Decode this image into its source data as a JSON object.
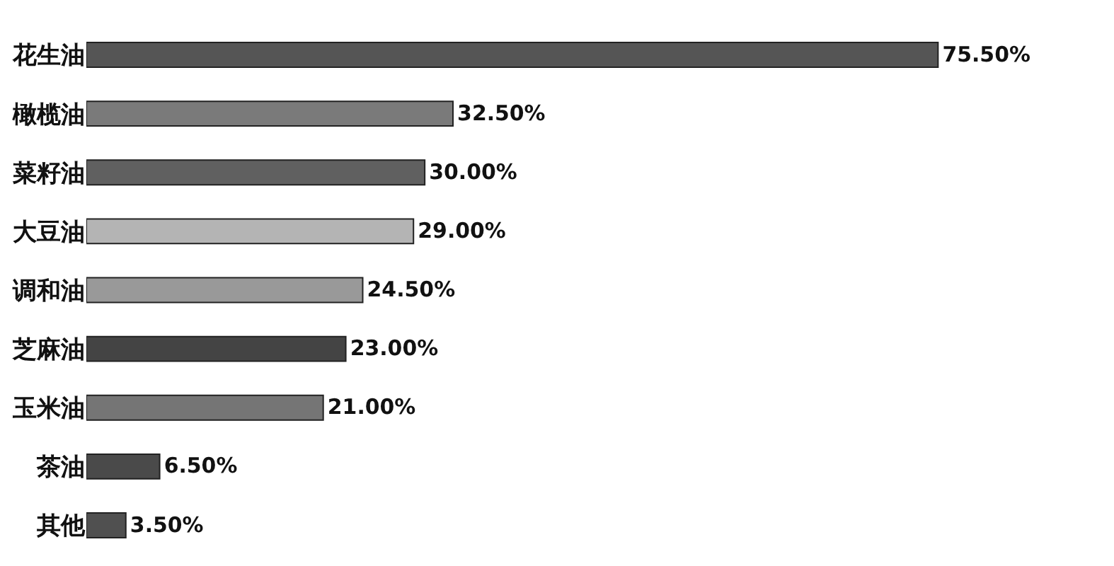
{
  "chart_data": {
    "type": "bar",
    "orientation": "horizontal",
    "categories": [
      "花生油",
      "橄榄油",
      "菜籽油",
      "大豆油",
      "调和油",
      "芝麻油",
      "玉米油",
      "茶油",
      "其他"
    ],
    "values": [
      75.5,
      32.5,
      30.0,
      29.0,
      24.5,
      23.0,
      21.0,
      6.5,
      3.5
    ],
    "value_labels": [
      "75.50%",
      "32.50%",
      "30.00%",
      "29.00%",
      "24.50%",
      "23.00%",
      "21.00%",
      "6.50%",
      "3.50%"
    ],
    "colors": [
      "#555555",
      "#7a7a7a",
      "#606060",
      "#b4b4b4",
      "#999999",
      "#444444",
      "#757575",
      "#4a4a4a",
      "#505050"
    ]
  }
}
